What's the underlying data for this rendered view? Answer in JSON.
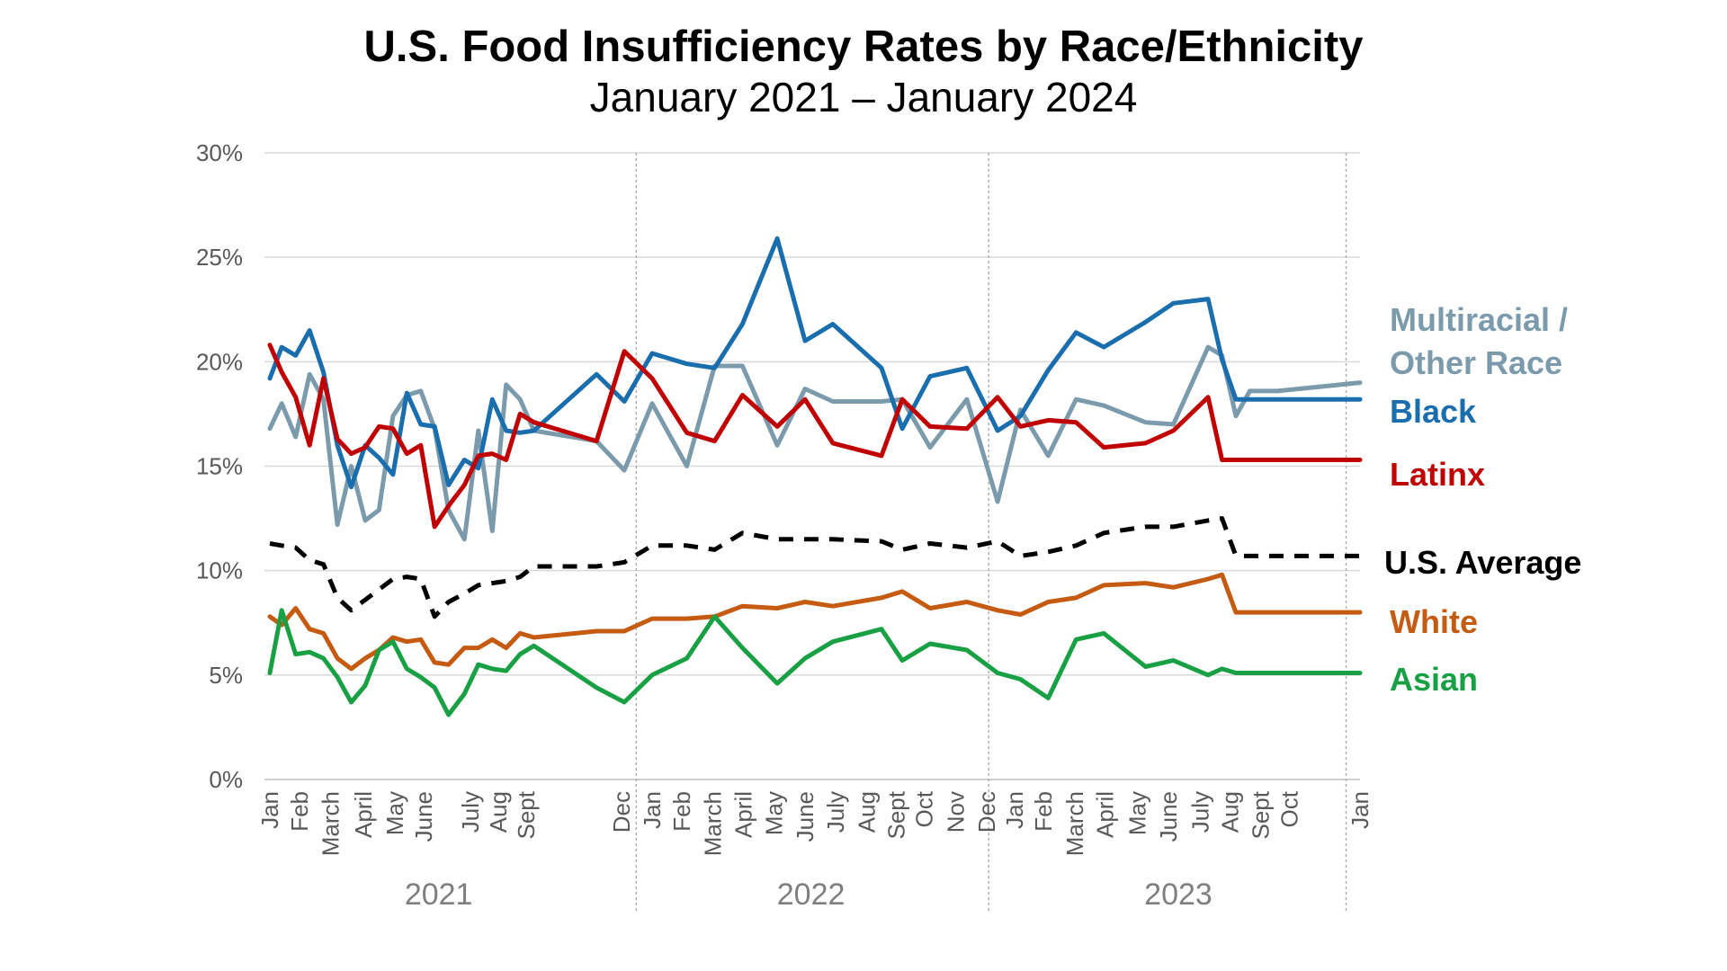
{
  "chart_data": {
    "type": "line",
    "title": "U.S. Food Insufficiency Rates by Race/Ethnicity",
    "subtitle": "January 2021 – January 2024",
    "xlabel": "",
    "ylabel": "",
    "ylim": [
      0,
      30
    ],
    "yticks": [
      "0%",
      "5%",
      "10%",
      "15%",
      "20%",
      "25%",
      "30%"
    ],
    "grid": "horizontal",
    "x_dates": [
      "2021-01-06",
      "2021-01-18",
      "2021-02-01",
      "2021-02-15",
      "2021-03-01",
      "2021-03-15",
      "2021-03-29",
      "2021-04-12",
      "2021-04-26",
      "2021-05-10",
      "2021-05-24",
      "2021-06-07",
      "2021-06-21",
      "2021-07-05",
      "2021-07-21",
      "2021-08-04",
      "2021-08-18",
      "2021-09-01",
      "2021-09-15",
      "2021-09-29",
      "2021-12-01",
      "2021-12-29",
      "2022-01-26",
      "2022-03-02",
      "2022-03-30",
      "2022-04-27",
      "2022-06-01",
      "2022-06-29",
      "2022-07-27",
      "2022-09-14",
      "2022-10-05",
      "2022-11-02",
      "2022-12-09",
      "2023-01-09",
      "2023-02-01",
      "2023-03-01",
      "2023-03-29",
      "2023-04-26",
      "2023-06-07",
      "2023-07-05",
      "2023-08-09",
      "2023-08-23",
      "2023-09-06",
      "2023-09-20",
      "2023-10-18",
      "2024-01-09"
    ],
    "x_ticks": [
      {
        "label": "Jan",
        "date": "2021-01-06"
      },
      {
        "label": "Feb",
        "date": "2021-02-05"
      },
      {
        "label": "March",
        "date": "2021-03-08"
      },
      {
        "label": "April",
        "date": "2021-04-10"
      },
      {
        "label": "May",
        "date": "2021-05-12"
      },
      {
        "label": "June",
        "date": "2021-06-10"
      },
      {
        "label": "July",
        "date": "2021-07-27"
      },
      {
        "label": "Aug",
        "date": "2021-08-24"
      },
      {
        "label": "Sept",
        "date": "2021-09-21"
      },
      {
        "label": "Dec",
        "date": "2021-12-26"
      },
      {
        "label": "Jan",
        "date": "2022-01-26"
      },
      {
        "label": "Feb",
        "date": "2022-02-25"
      },
      {
        "label": "March",
        "date": "2022-03-28"
      },
      {
        "label": "April",
        "date": "2022-04-28"
      },
      {
        "label": "May",
        "date": "2022-05-29"
      },
      {
        "label": "June",
        "date": "2022-06-29"
      },
      {
        "label": "July",
        "date": "2022-07-30"
      },
      {
        "label": "Aug",
        "date": "2022-08-30"
      },
      {
        "label": "Sept",
        "date": "2022-09-29"
      },
      {
        "label": "Oct",
        "date": "2022-10-27"
      },
      {
        "label": "Nov",
        "date": "2022-11-28"
      },
      {
        "label": "Dec",
        "date": "2022-12-29"
      },
      {
        "label": "Jan",
        "date": "2023-01-26"
      },
      {
        "label": "Feb",
        "date": "2023-02-24"
      },
      {
        "label": "March",
        "date": "2023-03-28"
      },
      {
        "label": "April",
        "date": "2023-04-27"
      },
      {
        "label": "May",
        "date": "2023-05-30"
      },
      {
        "label": "June",
        "date": "2023-06-30"
      },
      {
        "label": "July",
        "date": "2023-08-01"
      },
      {
        "label": "Aug",
        "date": "2023-08-31"
      },
      {
        "label": "Sept",
        "date": "2023-10-01"
      },
      {
        "label": "Oct",
        "date": "2023-10-30"
      },
      {
        "label": "Jan",
        "date": "2024-01-09"
      }
    ],
    "year_separators": [
      "2022-01-10",
      "2022-12-31",
      "2023-12-26"
    ],
    "year_labels": [
      {
        "label": "2021",
        "date": "2021-06-25"
      },
      {
        "label": "2022",
        "date": "2022-07-05"
      },
      {
        "label": "2023",
        "date": "2023-07-10"
      }
    ],
    "series": [
      {
        "name": "Multiracial / Other Race",
        "color": "#7b9bad",
        "dash": "solid",
        "values": [
          16.8,
          18.0,
          16.4,
          19.4,
          18.2,
          12.2,
          15.0,
          12.4,
          12.9,
          17.4,
          18.4,
          18.6,
          16.8,
          12.9,
          11.5,
          16.7,
          11.9,
          18.9,
          18.2,
          16.7,
          16.2,
          14.8,
          18.0,
          15.0,
          19.8,
          19.8,
          16.0,
          18.7,
          18.1,
          18.1,
          18.2,
          15.9,
          18.2,
          13.3,
          17.7,
          15.5,
          18.2,
          17.9,
          17.1,
          17.0,
          20.7,
          20.3,
          17.4,
          18.6,
          18.6,
          19.0
        ]
      },
      {
        "name": "Black",
        "color": "#1a6ead",
        "dash": "solid",
        "values": [
          19.2,
          20.7,
          20.3,
          21.5,
          19.5,
          16.0,
          14.0,
          16.0,
          15.4,
          14.6,
          18.5,
          17.0,
          16.9,
          14.1,
          15.3,
          14.9,
          18.2,
          16.7,
          16.6,
          16.7,
          19.4,
          18.1,
          20.4,
          19.9,
          19.7,
          21.8,
          25.9,
          21.0,
          21.8,
          19.7,
          16.8,
          19.3,
          19.7,
          16.7,
          17.4,
          19.6,
          21.4,
          20.7,
          21.9,
          22.8,
          23.0,
          20.1,
          18.2,
          18.2,
          18.2,
          18.2
        ]
      },
      {
        "name": "Latinx",
        "color": "#c00000",
        "dash": "solid",
        "values": [
          20.8,
          19.5,
          18.3,
          16.0,
          19.2,
          16.3,
          15.6,
          15.9,
          16.9,
          16.8,
          15.6,
          16.0,
          12.1,
          13.1,
          14.1,
          15.5,
          15.6,
          15.3,
          17.5,
          17.1,
          16.2,
          20.5,
          19.2,
          16.6,
          16.2,
          18.4,
          16.9,
          18.2,
          16.1,
          15.5,
          18.2,
          16.9,
          16.8,
          18.3,
          16.9,
          17.2,
          17.1,
          15.9,
          16.1,
          16.7,
          18.3,
          15.3,
          15.3,
          15.3,
          15.3,
          15.3
        ]
      },
      {
        "name": "U.S. Average",
        "color": "#000000",
        "dash": "dashed",
        "values": [
          11.3,
          11.2,
          11.1,
          10.5,
          10.3,
          8.7,
          8.1,
          8.6,
          9.1,
          9.6,
          9.7,
          9.6,
          7.8,
          8.5,
          8.9,
          9.3,
          9.4,
          9.5,
          9.7,
          10.2,
          10.2,
          10.4,
          11.2,
          11.2,
          11.0,
          11.8,
          11.5,
          11.5,
          11.5,
          11.4,
          11.0,
          11.3,
          11.1,
          11.4,
          10.7,
          10.9,
          11.2,
          11.8,
          12.1,
          12.1,
          12.4,
          12.5,
          10.7,
          10.7,
          10.7,
          10.7
        ]
      },
      {
        "name": "White",
        "color": "#c55a11",
        "dash": "solid",
        "values": [
          7.8,
          7.4,
          8.2,
          7.2,
          7.0,
          5.8,
          5.3,
          5.8,
          6.2,
          6.8,
          6.6,
          6.7,
          5.6,
          5.5,
          6.3,
          6.3,
          6.7,
          6.3,
          7.0,
          6.8,
          7.1,
          7.1,
          7.7,
          7.7,
          7.8,
          8.3,
          8.2,
          8.5,
          8.3,
          8.7,
          9.0,
          8.2,
          8.5,
          8.1,
          7.9,
          8.5,
          8.7,
          9.3,
          9.4,
          9.2,
          9.6,
          9.8,
          8.0,
          8.0,
          8.0,
          8.0
        ]
      },
      {
        "name": "Asian",
        "color": "#1aa044",
        "dash": "solid",
        "values": [
          5.1,
          8.1,
          6.0,
          6.1,
          5.8,
          4.9,
          3.7,
          4.5,
          6.2,
          6.6,
          5.3,
          4.9,
          4.4,
          3.1,
          4.1,
          5.5,
          5.3,
          5.2,
          6.0,
          6.4,
          4.4,
          3.7,
          5.0,
          5.8,
          7.8,
          6.3,
          4.6,
          5.8,
          6.6,
          7.2,
          5.7,
          6.5,
          6.2,
          5.1,
          4.8,
          3.9,
          6.7,
          7.0,
          5.4,
          5.7,
          5.0,
          5.3,
          5.1,
          5.1,
          5.1,
          5.1
        ]
      }
    ],
    "series_labels": [
      {
        "lines": [
          "Multiracial /",
          "Other Race"
        ],
        "color": "#7b9bad"
      },
      {
        "lines": [
          "Black"
        ],
        "color": "#1a6ead"
      },
      {
        "lines": [
          "Latinx"
        ],
        "color": "#c00000"
      },
      {
        "lines": [
          "U.S. Average"
        ],
        "color": "#000000"
      },
      {
        "lines": [
          "White"
        ],
        "color": "#c55a11"
      },
      {
        "lines": [
          "Asian"
        ],
        "color": "#1aa044"
      }
    ]
  }
}
